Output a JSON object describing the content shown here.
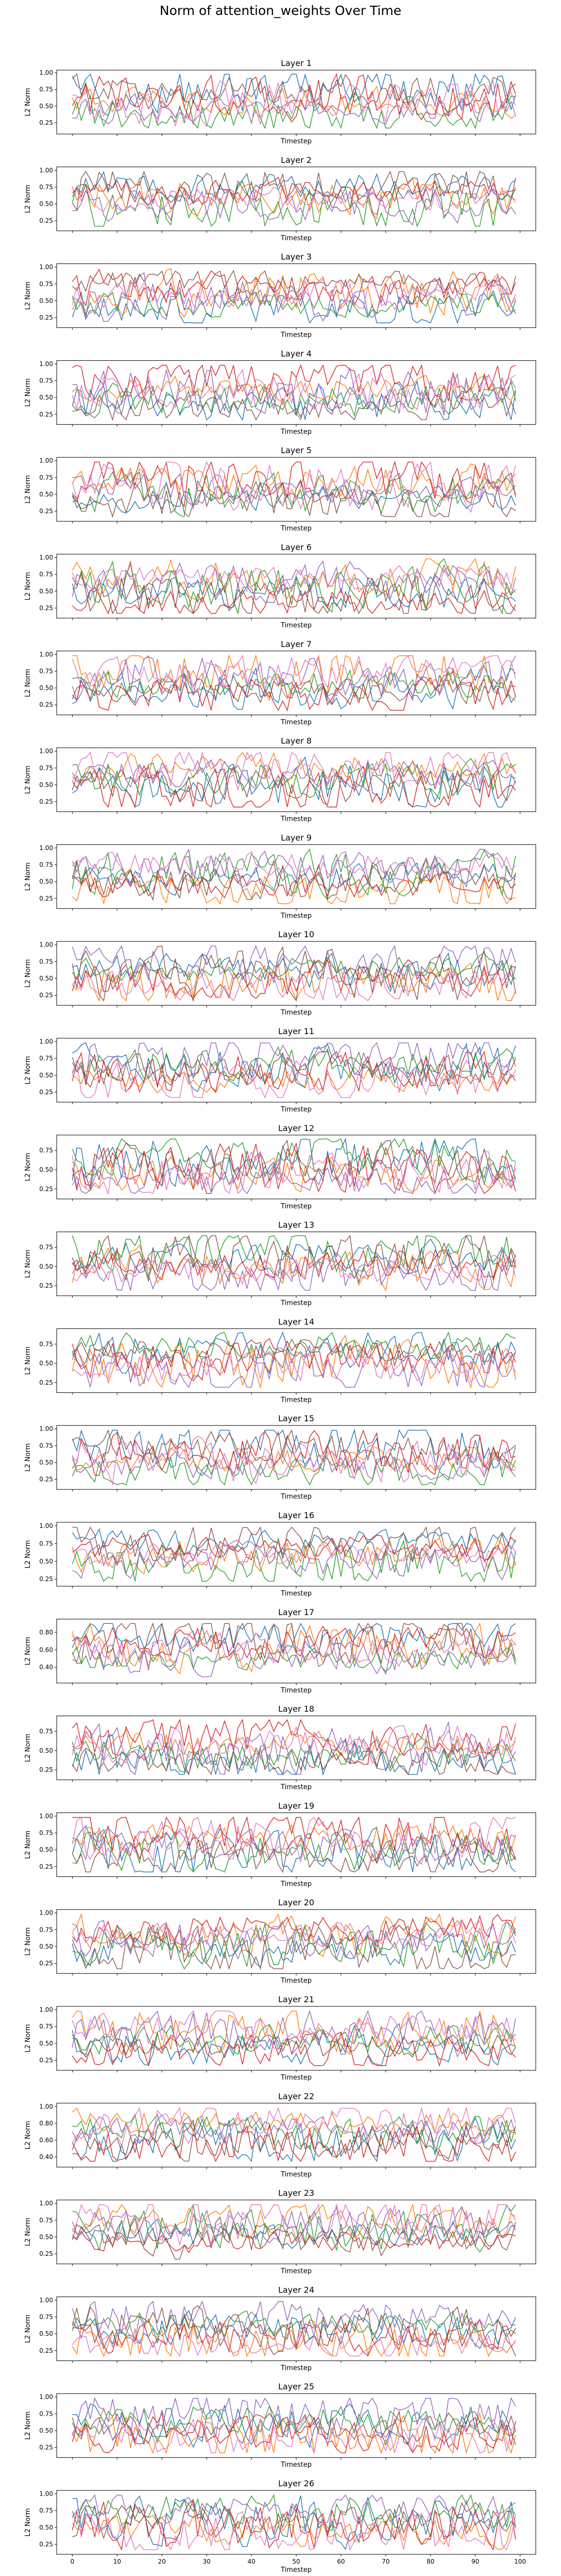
{
  "figure_title": "Norm of attention_weights Over Time",
  "axis_labels": {
    "xlabel": "Timestep",
    "ylabel": "L2 Norm"
  },
  "series_colors": [
    "#1f77b4",
    "#ff7f0e",
    "#2ca02c",
    "#d62728",
    "#9467bd",
    "#8c564b",
    "#e377c2",
    "#7f7f7f"
  ],
  "chart_data": [
    {
      "type": "line",
      "title": "Layer 1",
      "xlabel": "Timestep",
      "ylabel": "L2 Norm",
      "xlim": [
        -3.5,
        103.5
      ],
      "ylim": [
        0.08,
        1.04
      ],
      "yticks": [
        0.25,
        0.5,
        0.75,
        1.0
      ],
      "x_range": [
        0,
        99
      ],
      "series_count": 7,
      "grid": false,
      "legend": "none"
    },
    {
      "type": "line",
      "title": "Layer 2",
      "xlabel": "Timestep",
      "ylabel": "L2 Norm",
      "xlim": [
        -3.5,
        103.5
      ],
      "ylim": [
        0.1,
        1.05
      ],
      "yticks": [
        0.25,
        0.5,
        0.75,
        1.0
      ],
      "x_range": [
        0,
        99
      ],
      "series_count": 7,
      "grid": false,
      "legend": "none"
    },
    {
      "type": "line",
      "title": "Layer 3",
      "xlabel": "Timestep",
      "ylabel": "L2 Norm",
      "xlim": [
        -3.5,
        103.5
      ],
      "ylim": [
        0.1,
        1.05
      ],
      "yticks": [
        0.25,
        0.5,
        0.75,
        1.0
      ],
      "x_range": [
        0,
        99
      ],
      "series_count": 7,
      "grid": false,
      "legend": "none"
    },
    {
      "type": "line",
      "title": "Layer 4",
      "xlabel": "Timestep",
      "ylabel": "L2 Norm",
      "xlim": [
        -3.5,
        103.5
      ],
      "ylim": [
        0.1,
        1.05
      ],
      "yticks": [
        0.25,
        0.5,
        0.75,
        1.0
      ],
      "x_range": [
        0,
        99
      ],
      "series_count": 7,
      "grid": false,
      "legend": "none"
    },
    {
      "type": "line",
      "title": "Layer 5",
      "xlabel": "Timestep",
      "ylabel": "L2 Norm",
      "xlim": [
        -3.5,
        103.5
      ],
      "ylim": [
        0.1,
        1.05
      ],
      "yticks": [
        0.25,
        0.5,
        0.75,
        1.0
      ],
      "x_range": [
        0,
        99
      ],
      "series_count": 7,
      "grid": false,
      "legend": "none"
    },
    {
      "type": "line",
      "title": "Layer 6",
      "xlabel": "Timestep",
      "ylabel": "L2 Norm",
      "xlim": [
        -3.5,
        103.5
      ],
      "ylim": [
        0.1,
        1.05
      ],
      "yticks": [
        0.25,
        0.5,
        0.75,
        1.0
      ],
      "x_range": [
        0,
        99
      ],
      "series_count": 7,
      "grid": false,
      "legend": "none"
    },
    {
      "type": "line",
      "title": "Layer 7",
      "xlabel": "Timestep",
      "ylabel": "L2 Norm",
      "xlim": [
        -3.5,
        103.5
      ],
      "ylim": [
        0.1,
        1.05
      ],
      "yticks": [
        0.25,
        0.5,
        0.75,
        1.0
      ],
      "x_range": [
        0,
        99
      ],
      "series_count": 7,
      "grid": false,
      "legend": "none"
    },
    {
      "type": "line",
      "title": "Layer 8",
      "xlabel": "Timestep",
      "ylabel": "L2 Norm",
      "xlim": [
        -3.5,
        103.5
      ],
      "ylim": [
        0.1,
        1.05
      ],
      "yticks": [
        0.25,
        0.5,
        0.75,
        1.0
      ],
      "x_range": [
        0,
        99
      ],
      "series_count": 7,
      "grid": false,
      "legend": "none"
    },
    {
      "type": "line",
      "title": "Layer 9",
      "xlabel": "Timestep",
      "ylabel": "L2 Norm",
      "xlim": [
        -3.5,
        103.5
      ],
      "ylim": [
        0.1,
        1.05
      ],
      "yticks": [
        0.25,
        0.5,
        0.75,
        1.0
      ],
      "x_range": [
        0,
        99
      ],
      "series_count": 7,
      "grid": false,
      "legend": "none"
    },
    {
      "type": "line",
      "title": "Layer 10",
      "xlabel": "Timestep",
      "ylabel": "L2 Norm",
      "xlim": [
        -3.5,
        103.5
      ],
      "ylim": [
        0.1,
        1.05
      ],
      "yticks": [
        0.25,
        0.5,
        0.75,
        1.0
      ],
      "x_range": [
        0,
        99
      ],
      "series_count": 7,
      "grid": false,
      "legend": "none"
    },
    {
      "type": "line",
      "title": "Layer 11",
      "xlabel": "Timestep",
      "ylabel": "L2 Norm",
      "xlim": [
        -3.5,
        103.5
      ],
      "ylim": [
        0.1,
        1.05
      ],
      "yticks": [
        0.25,
        0.5,
        0.75,
        1.0
      ],
      "x_range": [
        0,
        99
      ],
      "series_count": 7,
      "grid": false,
      "legend": "none"
    },
    {
      "type": "line",
      "title": "Layer 12",
      "xlabel": "Timestep",
      "ylabel": "L2 Norm",
      "xlim": [
        -3.5,
        103.5
      ],
      "ylim": [
        0.12,
        0.95
      ],
      "yticks": [
        0.25,
        0.5,
        0.75
      ],
      "x_range": [
        0,
        99
      ],
      "series_count": 7,
      "grid": false,
      "legend": "none"
    },
    {
      "type": "line",
      "title": "Layer 13",
      "xlabel": "Timestep",
      "ylabel": "L2 Norm",
      "xlim": [
        -3.5,
        103.5
      ],
      "ylim": [
        0.12,
        0.95
      ],
      "yticks": [
        0.25,
        0.5,
        0.75
      ],
      "x_range": [
        0,
        99
      ],
      "series_count": 7,
      "grid": false,
      "legend": "none"
    },
    {
      "type": "line",
      "title": "Layer 14",
      "xlabel": "Timestep",
      "ylabel": "L2 Norm",
      "xlim": [
        -3.5,
        103.5
      ],
      "ylim": [
        0.12,
        0.95
      ],
      "yticks": [
        0.25,
        0.5,
        0.75
      ],
      "x_range": [
        0,
        99
      ],
      "series_count": 7,
      "grid": false,
      "legend": "none"
    },
    {
      "type": "line",
      "title": "Layer 15",
      "xlabel": "Timestep",
      "ylabel": "L2 Norm",
      "xlim": [
        -3.5,
        103.5
      ],
      "ylim": [
        0.1,
        1.05
      ],
      "yticks": [
        0.25,
        0.5,
        0.75,
        1.0
      ],
      "x_range": [
        0,
        99
      ],
      "series_count": 7,
      "grid": false,
      "legend": "none"
    },
    {
      "type": "line",
      "title": "Layer 16",
      "xlabel": "Timestep",
      "ylabel": "L2 Norm",
      "xlim": [
        -3.5,
        103.5
      ],
      "ylim": [
        0.15,
        1.05
      ],
      "yticks": [
        0.25,
        0.5,
        0.75,
        1.0
      ],
      "x_range": [
        0,
        99
      ],
      "series_count": 7,
      "grid": false,
      "legend": "none"
    },
    {
      "type": "line",
      "title": "Layer 17",
      "xlabel": "Timestep",
      "ylabel": "L2 Norm",
      "xlim": [
        -3.5,
        103.5
      ],
      "ylim": [
        0.22,
        0.95
      ],
      "yticks": [
        0.4,
        0.6,
        0.8
      ],
      "x_range": [
        0,
        99
      ],
      "series_count": 7,
      "grid": false,
      "legend": "none"
    },
    {
      "type": "line",
      "title": "Layer 18",
      "xlabel": "Timestep",
      "ylabel": "L2 Norm",
      "xlim": [
        -3.5,
        103.5
      ],
      "ylim": [
        0.12,
        0.95
      ],
      "yticks": [
        0.25,
        0.5,
        0.75
      ],
      "x_range": [
        0,
        99
      ],
      "series_count": 7,
      "grid": false,
      "legend": "none"
    },
    {
      "type": "line",
      "title": "Layer 19",
      "xlabel": "Timestep",
      "ylabel": "L2 Norm",
      "xlim": [
        -3.5,
        103.5
      ],
      "ylim": [
        0.1,
        1.05
      ],
      "yticks": [
        0.25,
        0.5,
        0.75,
        1.0
      ],
      "x_range": [
        0,
        99
      ],
      "series_count": 7,
      "grid": false,
      "legend": "none"
    },
    {
      "type": "line",
      "title": "Layer 20",
      "xlabel": "Timestep",
      "ylabel": "L2 Norm",
      "xlim": [
        -3.5,
        103.5
      ],
      "ylim": [
        0.1,
        1.05
      ],
      "yticks": [
        0.25,
        0.5,
        0.75,
        1.0
      ],
      "x_range": [
        0,
        99
      ],
      "series_count": 7,
      "grid": false,
      "legend": "none"
    },
    {
      "type": "line",
      "title": "Layer 21",
      "xlabel": "Timestep",
      "ylabel": "L2 Norm",
      "xlim": [
        -3.5,
        103.5
      ],
      "ylim": [
        0.1,
        1.05
      ],
      "yticks": [
        0.25,
        0.5,
        0.75,
        1.0
      ],
      "x_range": [
        0,
        99
      ],
      "series_count": 7,
      "grid": false,
      "legend": "none"
    },
    {
      "type": "line",
      "title": "Layer 22",
      "xlabel": "Timestep",
      "ylabel": "L2 Norm",
      "xlim": [
        -3.5,
        103.5
      ],
      "ylim": [
        0.28,
        1.04
      ],
      "yticks": [
        0.4,
        0.6,
        0.8,
        1.0
      ],
      "x_range": [
        0,
        99
      ],
      "series_count": 7,
      "grid": false,
      "legend": "none"
    },
    {
      "type": "line",
      "title": "Layer 23",
      "xlabel": "Timestep",
      "ylabel": "L2 Norm",
      "xlim": [
        -3.5,
        103.5
      ],
      "ylim": [
        0.1,
        1.05
      ],
      "yticks": [
        0.25,
        0.5,
        0.75,
        1.0
      ],
      "x_range": [
        0,
        99
      ],
      "series_count": 7,
      "grid": false,
      "legend": "none"
    },
    {
      "type": "line",
      "title": "Layer 24",
      "xlabel": "Timestep",
      "ylabel": "L2 Norm",
      "xlim": [
        -3.5,
        103.5
      ],
      "ylim": [
        0.1,
        1.05
      ],
      "yticks": [
        0.25,
        0.5,
        0.75,
        1.0
      ],
      "x_range": [
        0,
        99
      ],
      "series_count": 7,
      "grid": false,
      "legend": "none"
    },
    {
      "type": "line",
      "title": "Layer 25",
      "xlabel": "Timestep",
      "ylabel": "L2 Norm",
      "xlim": [
        -3.5,
        103.5
      ],
      "ylim": [
        0.1,
        1.05
      ],
      "yticks": [
        0.25,
        0.5,
        0.75,
        1.0
      ],
      "x_range": [
        0,
        99
      ],
      "series_count": 7,
      "grid": false,
      "legend": "none"
    },
    {
      "type": "line",
      "title": "Layer 26",
      "xlabel": "Timestep",
      "ylabel": "L2 Norm",
      "xlim": [
        -3.5,
        103.5
      ],
      "ylim": [
        0.1,
        1.05
      ],
      "yticks": [
        0.25,
        0.5,
        0.75,
        1.0
      ],
      "xticks": [
        0,
        10,
        20,
        30,
        40,
        50,
        60,
        70,
        80,
        90,
        100
      ],
      "x_range": [
        0,
        99
      ],
      "series_count": 7,
      "grid": false,
      "legend": "none"
    }
  ]
}
